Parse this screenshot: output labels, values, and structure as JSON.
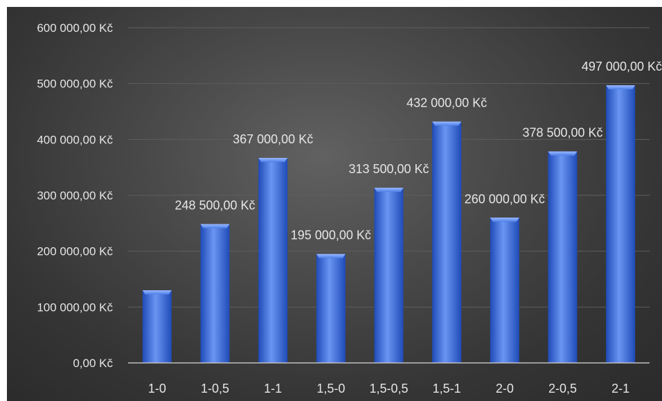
{
  "chart_data": {
    "type": "bar",
    "categories": [
      "1-0",
      "1-0,5",
      "1-1",
      "1,5-0",
      "1,5-0,5",
      "1,5-1",
      "2-0",
      "2-0,5",
      "2-1"
    ],
    "values": [
      130000,
      248500,
      367000,
      195000,
      313500,
      432000,
      260000,
      378500,
      497000
    ],
    "data_labels": [
      "",
      "248 500,00 Kč",
      "367 000,00 Kč",
      "195 000,00 Kč",
      "313 500,00 Kč",
      "432 000,00 Kč",
      "260 000,00 Kč",
      "378 500,00 Kč",
      "497 000,00 Kč"
    ],
    "y_ticks": [
      0,
      100000,
      200000,
      300000,
      400000,
      500000,
      600000
    ],
    "y_tick_labels": [
      "0,00 Kč",
      "100 000,00 Kč",
      "200 000,00 Kč",
      "300 000,00 Kč",
      "400 000,00 Kč",
      "500 000,00 Kč",
      "600 000,00 Kč"
    ],
    "ylim": [
      0,
      600000
    ],
    "title": "",
    "xlabel": "",
    "ylabel": "",
    "grid": true,
    "legend": "none",
    "colors": {
      "bar": "#3d6fe0",
      "bar_light": "#6b95f2",
      "bar_dark": "#1f4bb8",
      "grid": "#5e5e5e",
      "axis": "#bfbfbf",
      "text": "#e6e6e6"
    }
  }
}
